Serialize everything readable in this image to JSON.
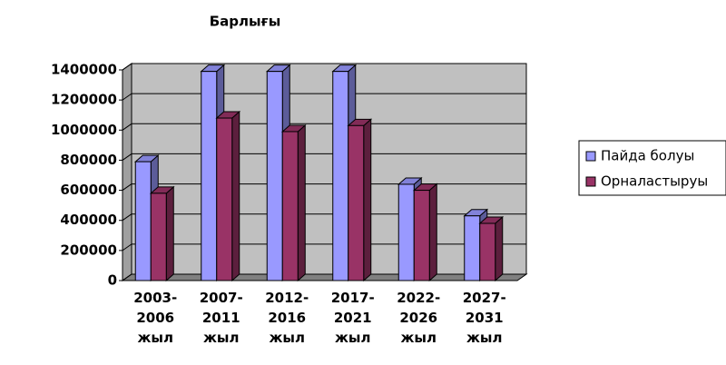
{
  "chart_data": {
    "type": "bar3d",
    "title": "Барлығы",
    "categories": [
      "2003-2006 жыл",
      "2007-2011 жыл",
      "2012-2016 жыл",
      "2017-2021 жыл",
      "2022-2026 жыл",
      "2027-2031 жыл"
    ],
    "series": [
      {
        "name": "Пайда болуы",
        "color": "#9999ff",
        "values": [
          790000,
          1390000,
          1390000,
          1390000,
          640000,
          430000
        ]
      },
      {
        "name": "Орналастыруы",
        "color": "#993366",
        "values": [
          580000,
          1080000,
          990000,
          1030000,
          600000,
          380000
        ]
      }
    ],
    "ylim": [
      0,
      1400000
    ],
    "yticks": [
      0,
      200000,
      400000,
      600000,
      800000,
      1000000,
      1200000,
      1400000
    ],
    "grid": true,
    "legend": "right"
  }
}
